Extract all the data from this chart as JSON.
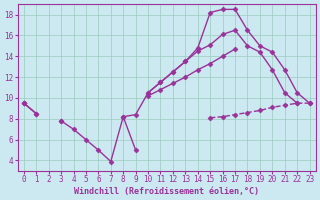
{
  "xlabel": "Windchill (Refroidissement éolien,°C)",
  "x": [
    0,
    1,
    2,
    3,
    4,
    5,
    6,
    7,
    8,
    9,
    10,
    11,
    12,
    13,
    14,
    15,
    16,
    17,
    18,
    19,
    20,
    21,
    22,
    23
  ],
  "line1": [
    9.5,
    8.5,
    null,
    7.8,
    7.0,
    6.0,
    5.0,
    3.9,
    8.2,
    5.0,
    null,
    null,
    null,
    null,
    null,
    null,
    null,
    null,
    null,
    null,
    null,
    null,
    null,
    null
  ],
  "line2": [
    9.5,
    8.5,
    null,
    7.8,
    null,
    null,
    null,
    null,
    8.2,
    8.4,
    10.5,
    11.5,
    12.5,
    13.5,
    14.5,
    15.1,
    16.1,
    16.5,
    15.0,
    14.4,
    12.7,
    10.5,
    9.5,
    null
  ],
  "line3": [
    9.5,
    null,
    null,
    null,
    null,
    null,
    null,
    null,
    null,
    null,
    10.2,
    10.8,
    11.4,
    12.0,
    12.7,
    13.3,
    14.0,
    14.7,
    null,
    null,
    null,
    null,
    null,
    null
  ],
  "line4_upper": [
    null,
    null,
    null,
    null,
    null,
    null,
    null,
    null,
    null,
    null,
    10.5,
    11.5,
    12.5,
    13.5,
    14.8,
    18.2,
    18.5,
    18.5,
    16.5,
    15.0,
    14.4,
    12.7,
    10.5,
    9.5
  ],
  "line_dashed": [
    null,
    null,
    null,
    null,
    null,
    null,
    null,
    null,
    null,
    null,
    null,
    null,
    null,
    null,
    null,
    8.1,
    8.2,
    8.4,
    8.6,
    8.8,
    9.1,
    9.3,
    9.5,
    9.5
  ],
  "ylim": [
    3,
    19
  ],
  "xlim_min": -0.5,
  "xlim_max": 23.5,
  "yticks": [
    4,
    6,
    8,
    10,
    12,
    14,
    16,
    18
  ],
  "xticks": [
    0,
    1,
    2,
    3,
    4,
    5,
    6,
    7,
    8,
    9,
    10,
    11,
    12,
    13,
    14,
    15,
    16,
    17,
    18,
    19,
    20,
    21,
    22,
    23
  ],
  "bg_color": "#cce8f0",
  "grid_color": "#99ccbb",
  "line_color": "#993399",
  "line_width": 1.0,
  "marker": "D",
  "marker_size": 2.5
}
